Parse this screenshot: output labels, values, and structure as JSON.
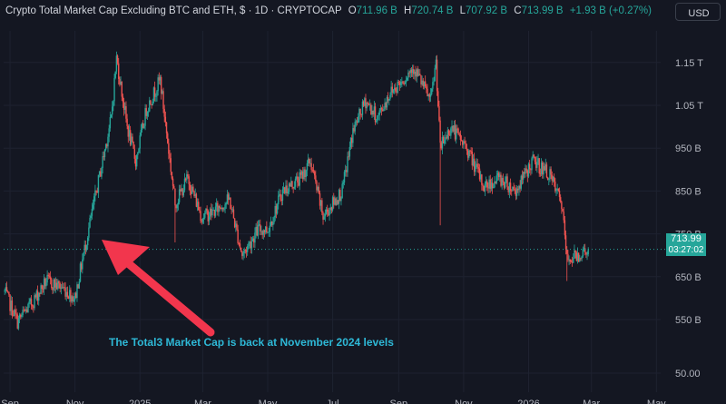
{
  "header": {
    "title": "Crypto Total Market Cap Excluding BTC and ETH, $ · 1D · CRYPTOCAP",
    "o_label": "O",
    "o_value": "711.96 B",
    "h_label": "H",
    "h_value": "720.74 B",
    "l_label": "L",
    "l_value": "707.92 B",
    "c_label": "C",
    "c_value": "713.99 B",
    "change": "+1.93 B (+0.27%)"
  },
  "currency_button": "USD",
  "annotation": "The Total3 Market Cap is back at November 2024 levels",
  "price_tag": {
    "price": "713.99 B",
    "countdown": "03:27:02"
  },
  "colors": {
    "up": "#26a69a",
    "down": "#ef5350",
    "annotation": "#2eb8d6",
    "arrow": "#f2364d",
    "background": "#141722"
  },
  "chart_data": {
    "type": "candlestick",
    "y_unit": "B",
    "y_ticks": [
      {
        "label": "1.15 T",
        "value": 1150
      },
      {
        "label": "1.05 T",
        "value": 1050
      },
      {
        "label": "950 B",
        "value": 950
      },
      {
        "label": "850 B",
        "value": 850
      },
      {
        "label": "750 B",
        "value": 750
      },
      {
        "label": "650 B",
        "value": 650
      },
      {
        "label": "550 B",
        "value": 550
      },
      {
        "label": "50.00",
        "value": 50
      }
    ],
    "y_break": {
      "from": 500,
      "to": 60
    },
    "x_ticks": [
      {
        "label": "Sep",
        "date": "2024-09-01"
      },
      {
        "label": "Nov",
        "date": "2024-11-01"
      },
      {
        "label": "2025",
        "date": "2025-01-01"
      },
      {
        "label": "Mar",
        "date": "2025-03-01"
      },
      {
        "label": "May",
        "date": "2025-05-01"
      },
      {
        "label": "Jul",
        "date": "2025-07-01"
      },
      {
        "label": "Sep",
        "date": "2025-09-01"
      },
      {
        "label": "Nov",
        "date": "2025-11-01"
      },
      {
        "label": "2026",
        "date": "2026-01-01"
      },
      {
        "label": "Mar",
        "date": "2026-03-01"
      },
      {
        "label": "May",
        "date": "2026-05-01"
      }
    ],
    "x_range": [
      "2024-08-26",
      "2026-05-05"
    ],
    "last_price": 713.99,
    "anchors": [
      [
        "2024-08-27",
        615
      ],
      [
        "2024-09-08",
        545
      ],
      [
        "2024-09-22",
        590
      ],
      [
        "2024-10-05",
        640
      ],
      [
        "2024-10-20",
        625
      ],
      [
        "2024-11-01",
        600
      ],
      [
        "2024-11-08",
        690
      ],
      [
        "2024-11-22",
        860
      ],
      [
        "2024-12-05",
        1020
      ],
      [
        "2024-12-10",
        1160
      ],
      [
        "2024-12-20",
        1000
      ],
      [
        "2024-12-28",
        920
      ],
      [
        "2025-01-07",
        1040
      ],
      [
        "2025-01-20",
        1110
      ],
      [
        "2025-02-03",
        820
      ],
      [
        "2025-02-15",
        880
      ],
      [
        "2025-02-28",
        790
      ],
      [
        "2025-03-10",
        800
      ],
      [
        "2025-03-26",
        830
      ],
      [
        "2025-04-07",
        700
      ],
      [
        "2025-04-22",
        760
      ],
      [
        "2025-05-01",
        760
      ],
      [
        "2025-05-15",
        850
      ],
      [
        "2025-06-01",
        880
      ],
      [
        "2025-06-10",
        920
      ],
      [
        "2025-06-22",
        790
      ],
      [
        "2025-07-10",
        850
      ],
      [
        "2025-07-20",
        990
      ],
      [
        "2025-08-01",
        1060
      ],
      [
        "2025-08-12",
        1020
      ],
      [
        "2025-08-24",
        1080
      ],
      [
        "2025-09-05",
        1110
      ],
      [
        "2025-09-15",
        1140
      ],
      [
        "2025-10-01",
        1060
      ],
      [
        "2025-10-06",
        1150
      ],
      [
        "2025-10-10",
        950
      ],
      [
        "2025-10-20",
        1000
      ],
      [
        "2025-11-04",
        950
      ],
      [
        "2025-11-20",
        860
      ],
      [
        "2025-12-05",
        880
      ],
      [
        "2025-12-20",
        850
      ],
      [
        "2026-01-05",
        920
      ],
      [
        "2026-01-20",
        890
      ],
      [
        "2026-02-01",
        820
      ],
      [
        "2026-02-06",
        690
      ],
      [
        "2026-02-20",
        705
      ],
      [
        "2026-02-26",
        713.99
      ]
    ]
  }
}
